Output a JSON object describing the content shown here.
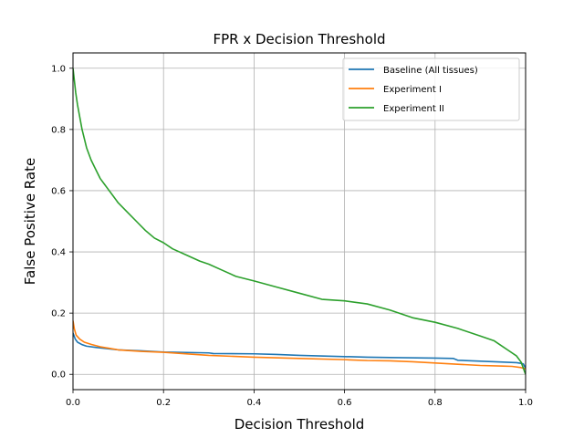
{
  "chart_data": {
    "type": "line",
    "title": "FPR x Decision Threshold",
    "xlabel": "Decision Threshold",
    "ylabel": "False Positive Rate",
    "xlim": [
      0.0,
      1.0
    ],
    "ylim": [
      -0.05,
      1.05
    ],
    "grid": true,
    "legend_position": "top-right",
    "xticks": [
      0.0,
      0.2,
      0.4,
      0.6,
      0.8,
      1.0
    ],
    "xtick_labels": [
      "0.0",
      "0.2",
      "0.4",
      "0.6",
      "0.8",
      "1.0"
    ],
    "yticks": [
      0.0,
      0.2,
      0.4,
      0.6,
      0.8,
      1.0
    ],
    "ytick_labels": [
      "0.0",
      "0.2",
      "0.4",
      "0.6",
      "0.8",
      "1.0"
    ],
    "series": [
      {
        "name": "Baseline (All tissues)",
        "color": "#1f77b4",
        "x": [
          0.0,
          0.005,
          0.01,
          0.02,
          0.03,
          0.05,
          0.08,
          0.1,
          0.15,
          0.2,
          0.3,
          0.31,
          0.4,
          0.45,
          0.5,
          0.6,
          0.65,
          0.7,
          0.8,
          0.84,
          0.85,
          0.9,
          0.95,
          0.98,
          0.99,
          0.995,
          1.0
        ],
        "y": [
          0.135,
          0.115,
          0.105,
          0.097,
          0.092,
          0.088,
          0.083,
          0.08,
          0.077,
          0.073,
          0.07,
          0.068,
          0.067,
          0.065,
          0.062,
          0.058,
          0.056,
          0.055,
          0.053,
          0.052,
          0.046,
          0.043,
          0.04,
          0.038,
          0.036,
          0.034,
          0.02
        ]
      },
      {
        "name": "Experiment I",
        "color": "#ff7f0e",
        "x": [
          0.0,
          0.003,
          0.007,
          0.015,
          0.025,
          0.04,
          0.06,
          0.08,
          0.1,
          0.15,
          0.2,
          0.3,
          0.4,
          0.5,
          0.6,
          0.65,
          0.7,
          0.75,
          0.8,
          0.85,
          0.9,
          0.95,
          0.97,
          0.99,
          1.0
        ],
        "y": [
          0.175,
          0.148,
          0.128,
          0.115,
          0.105,
          0.098,
          0.09,
          0.085,
          0.08,
          0.075,
          0.072,
          0.062,
          0.056,
          0.052,
          0.048,
          0.045,
          0.044,
          0.041,
          0.037,
          0.033,
          0.029,
          0.027,
          0.026,
          0.022,
          0.018
        ]
      },
      {
        "name": "Experiment II",
        "color": "#2ca02c",
        "x": [
          0.0,
          0.003,
          0.006,
          0.01,
          0.015,
          0.02,
          0.03,
          0.04,
          0.05,
          0.06,
          0.07,
          0.08,
          0.09,
          0.1,
          0.12,
          0.14,
          0.16,
          0.18,
          0.2,
          0.22,
          0.25,
          0.28,
          0.3,
          0.33,
          0.36,
          0.4,
          0.45,
          0.5,
          0.55,
          0.6,
          0.65,
          0.7,
          0.75,
          0.8,
          0.85,
          0.9,
          0.93,
          0.96,
          0.98,
          0.99,
          1.0
        ],
        "y": [
          1.0,
          0.96,
          0.92,
          0.88,
          0.84,
          0.8,
          0.74,
          0.7,
          0.67,
          0.64,
          0.62,
          0.6,
          0.58,
          0.56,
          0.53,
          0.5,
          0.47,
          0.445,
          0.43,
          0.41,
          0.39,
          0.37,
          0.36,
          0.34,
          0.32,
          0.305,
          0.285,
          0.265,
          0.245,
          0.24,
          0.23,
          0.21,
          0.185,
          0.17,
          0.15,
          0.125,
          0.11,
          0.08,
          0.06,
          0.04,
          0.0
        ]
      }
    ]
  }
}
